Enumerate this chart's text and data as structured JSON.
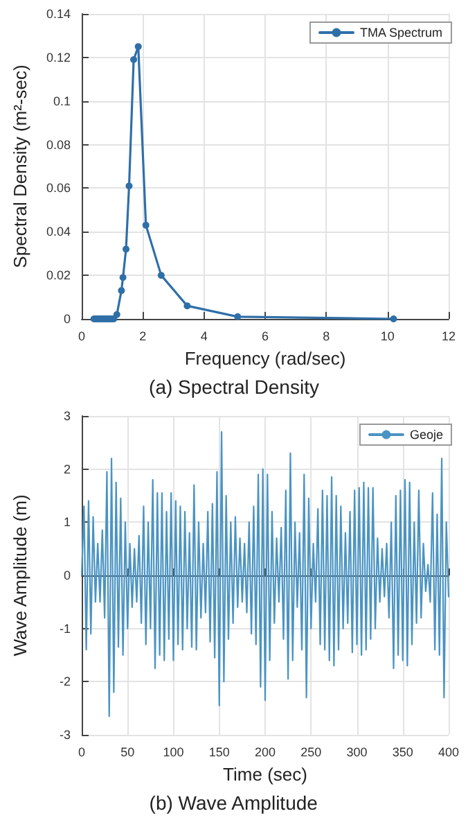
{
  "chart_data": [
    {
      "type": "line",
      "xlabel": "Frequency (rad/sec)",
      "ylabel": "Spectral Density (m²-sec)",
      "annotations": [
        "(a) Spectral Density"
      ],
      "x": [
        0.4,
        0.45,
        0.5,
        0.55,
        0.6,
        0.65,
        0.7,
        0.75,
        0.8,
        0.85,
        0.9,
        0.95,
        1.0,
        1.05,
        1.15,
        1.3,
        1.35,
        1.45,
        1.55,
        1.7,
        1.85,
        2.1,
        2.6,
        3.45,
        5.1,
        10.2
      ],
      "series": [
        {
          "name": "TMA Spectrum",
          "color": "#2f6fa8",
          "values": [
            0,
            0,
            0,
            0,
            0,
            0,
            0,
            0,
            0,
            0,
            0,
            0,
            0,
            0,
            0.002,
            0.013,
            0.019,
            0.032,
            0.061,
            0.119,
            0.125,
            0.043,
            0.02,
            0.006,
            0.001,
            0
          ]
        }
      ],
      "xlim": [
        0,
        12
      ],
      "xticks": [
        0,
        2,
        4,
        6,
        8,
        10,
        12
      ],
      "ylim": [
        0,
        0.14
      ],
      "yticks": [
        0,
        0.02,
        0.04,
        0.06,
        0.08,
        0.1,
        0.12,
        0.14
      ],
      "grid": true,
      "legend": "top right",
      "marker": "circle",
      "line_style": "solid"
    },
    {
      "type": "line",
      "xlabel": "Time (sec)",
      "ylabel": "Wave Amplitude (m)",
      "annotations": [
        "(b) Wave Amplitude"
      ],
      "x": [
        0,
        2.5,
        5,
        7.5,
        10,
        12.5,
        15,
        17.5,
        20,
        22.5,
        25,
        27.5,
        30,
        32.5,
        35,
        37.5,
        40,
        42.5,
        45,
        47.5,
        50,
        52.5,
        55,
        57.5,
        60,
        62.5,
        65,
        67.5,
        70,
        72.5,
        75,
        77.5,
        80,
        82.5,
        85,
        87.5,
        90,
        92.5,
        95,
        97.5,
        100,
        102.5,
        105,
        107.5,
        110,
        112.5,
        115,
        117.5,
        120,
        122.5,
        125,
        127.5,
        130,
        132.5,
        135,
        137.5,
        140,
        142.5,
        145,
        147.5,
        150,
        152.5,
        155,
        157.5,
        160,
        162.5,
        165,
        167.5,
        170,
        172.5,
        175,
        177.5,
        180,
        182.5,
        185,
        187.5,
        190,
        192.5,
        195,
        197.5,
        200,
        202.5,
        205,
        207.5,
        210,
        212.5,
        215,
        217.5,
        220,
        222.5,
        225,
        227.5,
        230,
        232.5,
        235,
        237.5,
        240,
        242.5,
        245,
        247.5,
        250,
        252.5,
        255,
        257.5,
        260,
        262.5,
        265,
        267.5,
        270,
        272.5,
        275,
        277.5,
        280,
        282.5,
        285,
        287.5,
        290,
        292.5,
        295,
        297.5,
        300,
        302.5,
        305,
        307.5,
        310,
        312.5,
        315,
        317.5,
        320,
        322.5,
        325,
        327.5,
        330,
        332.5,
        335,
        337.5,
        340,
        342.5,
        345,
        347.5,
        350,
        352.5,
        355,
        357.5,
        360,
        362.5,
        365,
        367.5,
        370,
        372.5,
        375,
        377.5,
        380,
        382.5,
        385,
        387.5,
        390,
        392.5,
        395,
        397.5,
        400
      ],
      "series": [
        {
          "name": "Geoje",
          "color": "#4a93c2",
          "values": [
            0,
            1.3,
            -1.4,
            1.4,
            -1.1,
            1.1,
            -0.5,
            0.6,
            -0.5,
            0.85,
            -0.8,
            1.95,
            -2.65,
            2.2,
            -2.2,
            1.75,
            -1.35,
            1.45,
            -1.5,
            1.0,
            -1.0,
            0.6,
            -0.6,
            0.5,
            -0.5,
            0.75,
            -0.9,
            1.3,
            -1.3,
            1.0,
            -1.0,
            1.8,
            -1.75,
            1.55,
            -1.5,
            1.55,
            -1.6,
            1.2,
            -1.2,
            1.55,
            -1.6,
            1.4,
            -1.3,
            1.3,
            -1.4,
            1.2,
            -1.0,
            0.8,
            -1.35,
            1.7,
            -1.4,
            1.0,
            -0.8,
            0.6,
            -0.7,
            1.2,
            -1.25,
            1.35,
            -1.55,
            1.95,
            -2.45,
            2.7,
            -2.0,
            1.5,
            -1.2,
            1.0,
            -0.9,
            1.1,
            -0.6,
            0.7,
            -0.5,
            0.6,
            -0.7,
            1.0,
            -1.1,
            1.3,
            -1.3,
            1.9,
            -2.1,
            2.0,
            -2.35,
            1.9,
            -1.6,
            1.2,
            -0.9,
            0.7,
            -0.5,
            0.9,
            -1.2,
            1.6,
            -1.95,
            2.3,
            -1.6,
            1.0,
            -0.6,
            0.8,
            -1.4,
            1.9,
            -2.3,
            1.45,
            -1.0,
            0.6,
            -0.5,
            1.25,
            -1.3,
            1.6,
            -1.4,
            1.5,
            -1.6,
            1.85,
            -1.7,
            1.5,
            -1.4,
            1.3,
            -1.0,
            0.8,
            -0.9,
            1.2,
            -1.45,
            1.6,
            -1.3,
            1.65,
            -1.5,
            1.75,
            -1.4,
            1.65,
            -1.2,
            1.65,
            -1.0,
            0.7,
            -0.5,
            0.5,
            -0.4,
            0.6,
            -0.8,
            1.0,
            -1.75,
            1.5,
            -1.5,
            1.6,
            -1.6,
            1.8,
            -1.7,
            1.75,
            -1.3,
            1.0,
            -0.9,
            1.6,
            -0.8,
            0.6,
            -0.3,
            0.2,
            -0.5,
            1.55,
            -1.4,
            1.15,
            -1.5,
            2.2,
            -2.3,
            1.0,
            -0.4
          ]
        }
      ],
      "xlim": [
        0,
        400
      ],
      "xticks": [
        0,
        50,
        100,
        150,
        200,
        250,
        300,
        350,
        400
      ],
      "ylim": [
        -3,
        3
      ],
      "yticks": [
        -3,
        -2,
        -1,
        0,
        1,
        2,
        3
      ],
      "grid": true,
      "legend": "top right",
      "marker": "none",
      "line_style": "solid"
    }
  ]
}
